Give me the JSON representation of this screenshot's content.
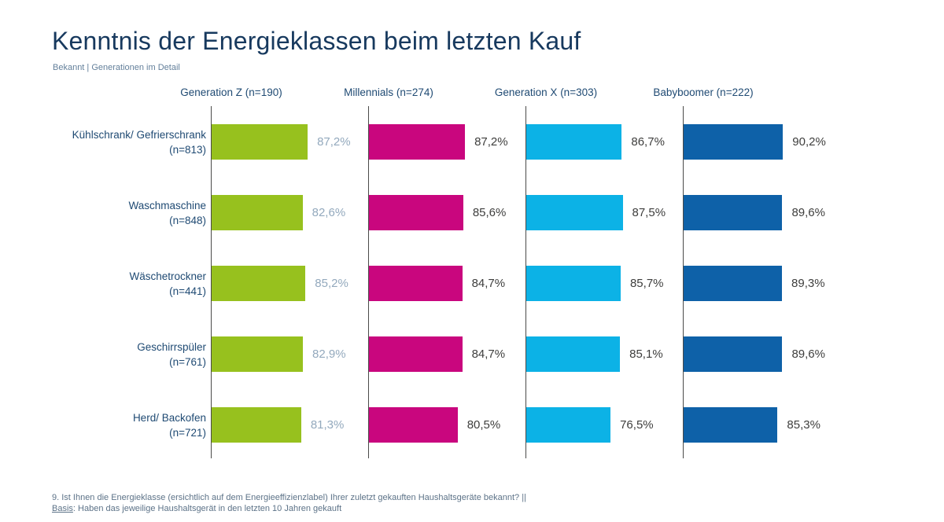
{
  "chart_data": {
    "type": "bar",
    "orientation": "horizontal",
    "title": "Kenntnis der Energieklassen beim letzten Kauf",
    "subtitle": "Bekannt | Generationen im Detail",
    "grid": "off",
    "legend": "column-headers",
    "value_axis": {
      "min": 0,
      "max": 100,
      "unit": "%",
      "decimal_separator": ","
    },
    "categories": [
      {
        "label": "Kühlschrank/ Gefrierschrank",
        "n": "(n=813)"
      },
      {
        "label": "Waschmaschine",
        "n": "(n=848)"
      },
      {
        "label": "Wäschetrockner",
        "n": "(n=441)"
      },
      {
        "label": "Geschirrspüler",
        "n": "(n=761)"
      },
      {
        "label": "Herd/ Backofen",
        "n": "(n=721)"
      }
    ],
    "series": [
      {
        "name": "Generation Z",
        "header": "Generation Z (n=190)",
        "color": "#97C11E",
        "value_label_color": "#93A9BD",
        "values": [
          87.2,
          82.6,
          85.2,
          82.9,
          81.3
        ]
      },
      {
        "name": "Millennials",
        "header": "Millennials (n=274)",
        "color": "#C9067E",
        "value_label_color": "#3E3E3D",
        "values": [
          87.2,
          85.6,
          84.7,
          84.7,
          80.5
        ]
      },
      {
        "name": "Generation X",
        "header": "Generation X (n=303)",
        "color": "#0CB2E6",
        "value_label_color": "#3E3E3D",
        "values": [
          86.7,
          87.5,
          85.7,
          85.1,
          76.5
        ]
      },
      {
        "name": "Babyboomer",
        "header": "Babyboomer (n=222)",
        "color": "#0E61A8",
        "value_label_color": "#3E3E3D",
        "values": [
          90.2,
          89.6,
          89.3,
          89.6,
          85.3
        ]
      }
    ]
  },
  "footer": {
    "question": "9. Ist Ihnen die Energieklasse (ersichtlich auf dem Energieeffizienzlabel) Ihrer zuletzt gekauften Haushaltsgeräte bekannt? ||",
    "basis_label": "Basis",
    "basis_text": ": Haben das jeweilige Haushaltsgerät in den letzten 10 Jahren gekauft"
  },
  "colors": {
    "title_text": "#17395E",
    "subtitle_text": "#64809B",
    "header_text": "#1F4A73",
    "category_text": "#1F4A73",
    "footnote_text": "#5D7388",
    "axis_line": "#4A4A49",
    "background": "#FFFFFF"
  }
}
